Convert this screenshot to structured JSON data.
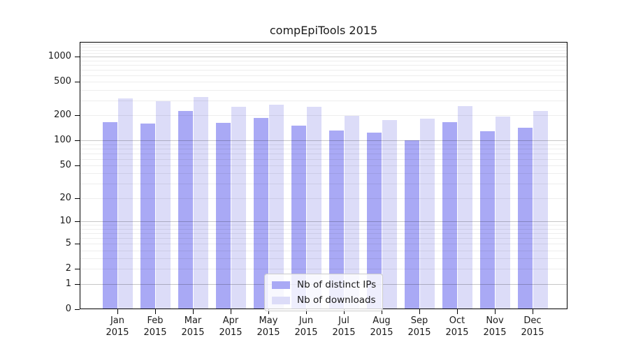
{
  "title": "compEpiTools 2015",
  "chart_data": {
    "type": "bar",
    "title": "compEpiTools 2015",
    "categories": [
      "Jan",
      "Feb",
      "Mar",
      "Apr",
      "May",
      "Jun",
      "Jul",
      "Aug",
      "Sep",
      "Oct",
      "Nov",
      "Dec"
    ],
    "year": "2015",
    "series": [
      {
        "name": "Nb of distinct IPs",
        "values": [
          165,
          158,
          226,
          161,
          186,
          151,
          132,
          124,
          100,
          166,
          128,
          143
        ]
      },
      {
        "name": "Nb of downloads",
        "values": [
          320,
          295,
          330,
          254,
          267,
          252,
          196,
          175,
          182,
          258,
          193,
          225
        ]
      }
    ],
    "yscale": "log1p",
    "yticks": [
      0,
      1,
      2,
      5,
      10,
      20,
      50,
      100,
      200,
      500,
      1000
    ],
    "ytick_labels": [
      "0",
      "1",
      "2",
      "5",
      "10",
      "20",
      "50",
      "100",
      "200",
      "500",
      "1000"
    ],
    "ylim": [
      0,
      1500
    ],
    "xlabel": "",
    "ylabel": "",
    "grid": "horizontal",
    "legend_position": "inside-bottom-center",
    "colors": {
      "ips": "#a9a9f5",
      "downloads": "#dcdcf8",
      "grid_major": "rgba(0,0,0,0.22)",
      "grid_minor": "rgba(0,0,0,0.07)",
      "axis": "#000000",
      "text": "#1a1a1a"
    }
  }
}
